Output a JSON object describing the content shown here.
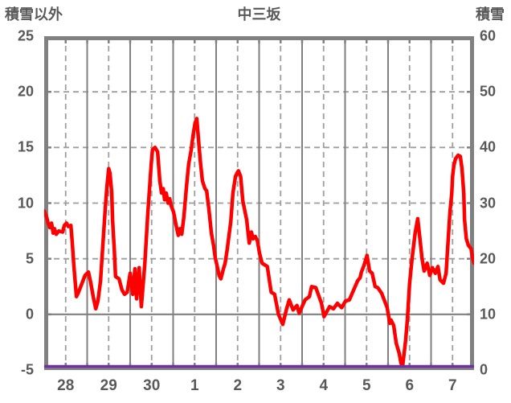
{
  "header": {
    "left_axis_label": "積雪以外",
    "title": "中三坂",
    "right_axis_label": "積雪"
  },
  "colors": {
    "temperature_line": "#ff0000",
    "snow_line": "#7030a0",
    "frame": "#808080",
    "grid_major": "#808080",
    "grid_minor": "#9e9e9e",
    "text": "#595959"
  },
  "chart_data": {
    "type": "line",
    "title": "中三坂",
    "left_axis": {
      "label": "積雪以外",
      "ticks": [
        25,
        20,
        15,
        10,
        5,
        0,
        -5
      ],
      "range": [
        -5,
        25
      ]
    },
    "right_axis": {
      "label": "積雪",
      "ticks": [
        60,
        50,
        40,
        30,
        20,
        10,
        0
      ],
      "range": [
        0,
        60
      ]
    },
    "x_axis": {
      "tick_labels": [
        "28",
        "29",
        "30",
        "1",
        "2",
        "3",
        "4",
        "5",
        "6",
        "7"
      ],
      "range_days": [
        0,
        10
      ]
    },
    "grid": {
      "h_dashed_values": [
        20,
        15,
        10,
        5
      ],
      "h_solid_values": [
        0
      ],
      "v_solid_step_days": 1,
      "v_dashed_step_days": 0.5
    },
    "legend": "none",
    "series": [
      {
        "name": "積雪以外",
        "axis": "left",
        "color": "#ff0000",
        "x": [
          0.0,
          0.06,
          0.09,
          0.13,
          0.17,
          0.21,
          0.24,
          0.28,
          0.34,
          0.43,
          0.47,
          0.52,
          0.56,
          0.62,
          0.65,
          0.69,
          0.75,
          0.8,
          0.88,
          0.95,
          1.03,
          1.08,
          1.14,
          1.2,
          1.25,
          1.31,
          1.36,
          1.42,
          1.46,
          1.5,
          1.53,
          1.57,
          1.59,
          1.63,
          1.66,
          1.74,
          1.81,
          1.87,
          1.93,
          2.0,
          2.06,
          2.11,
          2.15,
          2.21,
          2.26,
          2.34,
          2.41,
          2.49,
          2.52,
          2.58,
          2.64,
          2.69,
          2.73,
          2.77,
          2.8,
          2.84,
          2.88,
          2.92,
          2.95,
          3.01,
          3.07,
          3.12,
          3.16,
          3.2,
          3.25,
          3.31,
          3.36,
          3.42,
          3.46,
          3.51,
          3.55,
          3.61,
          3.64,
          3.68,
          3.74,
          3.78,
          3.83,
          3.89,
          3.94,
          3.98,
          4.02,
          4.07,
          4.11,
          4.17,
          4.21,
          4.26,
          4.3,
          4.34,
          4.39,
          4.45,
          4.5,
          4.52,
          4.57,
          4.62,
          4.71,
          4.77,
          4.82,
          4.86,
          4.91,
          4.96,
          5.01,
          5.07,
          5.19,
          5.28,
          5.36,
          5.45,
          5.55,
          5.64,
          5.7,
          5.79,
          5.88,
          5.93,
          6.07,
          6.17,
          6.22,
          6.32,
          6.45,
          6.51,
          6.64,
          6.73,
          6.82,
          6.92,
          7.01,
          7.1,
          7.2,
          7.29,
          7.35,
          7.38,
          7.44,
          7.51,
          7.57,
          7.63,
          7.7,
          7.76,
          7.85,
          7.98,
          8.04,
          8.07,
          8.13,
          8.19,
          8.26,
          8.3,
          8.34,
          8.41,
          8.45,
          8.5,
          8.56,
          8.63,
          8.69,
          8.75,
          8.79,
          8.84,
          8.91,
          8.97,
          9.03,
          9.1,
          9.16,
          9.21,
          9.29,
          9.35,
          9.4,
          9.44,
          9.48,
          9.5,
          9.53,
          9.57,
          9.63,
          9.68,
          9.72,
          9.76,
          9.78,
          9.82,
          9.87,
          9.93,
          9.97,
          10.0
        ],
        "y": [
          9.3,
          8.7,
          8.2,
          7.8,
          8.2,
          7.3,
          7.7,
          7.2,
          7.5,
          7.4,
          8.0,
          8.2,
          7.9,
          8.0,
          6.6,
          4.4,
          1.6,
          2.0,
          2.8,
          3.5,
          3.8,
          2.9,
          1.6,
          0.5,
          1.2,
          3.0,
          6.0,
          9.5,
          11.5,
          13.1,
          12.7,
          11.0,
          8.5,
          5.9,
          3.4,
          3.2,
          2.2,
          1.8,
          2.0,
          3.7,
          1.8,
          4.1,
          1.4,
          4.2,
          0.7,
          4.5,
          9.0,
          13.5,
          14.8,
          15.0,
          14.6,
          12.0,
          10.9,
          11.3,
          10.3,
          10.9,
          10.0,
          10.4,
          9.8,
          9.2,
          8.0,
          7.1,
          7.7,
          7.2,
          8.8,
          11.5,
          13.5,
          14.8,
          16.0,
          17.2,
          17.6,
          14.8,
          13.5,
          12.0,
          11.3,
          11.1,
          9.5,
          7.3,
          6.2,
          5.1,
          4.4,
          3.5,
          3.2,
          4.1,
          4.6,
          5.9,
          7.1,
          8.3,
          10.9,
          12.4,
          12.8,
          12.9,
          12.4,
          10.2,
          8.5,
          6.4,
          7.4,
          6.8,
          7.0,
          6.6,
          5.5,
          4.6,
          4.3,
          2.0,
          1.8,
          0.0,
          -0.9,
          0.5,
          1.3,
          0.4,
          0.8,
          0.1,
          1.3,
          1.6,
          2.5,
          2.4,
          1.0,
          -0.2,
          0.7,
          0.5,
          1.0,
          0.6,
          1.2,
          1.3,
          2.2,
          3.0,
          3.3,
          3.8,
          4.4,
          5.3,
          3.9,
          3.7,
          2.5,
          2.4,
          1.9,
          0.6,
          -0.8,
          -0.5,
          -1.0,
          -2.6,
          -3.5,
          -4.4,
          -4.6,
          -2.3,
          -0.4,
          2.8,
          5.1,
          7.3,
          8.6,
          6.5,
          5.0,
          3.9,
          4.6,
          3.5,
          4.2,
          3.7,
          4.3,
          3.1,
          2.8,
          3.7,
          6.8,
          9.2,
          10.8,
          12.4,
          13.4,
          14.0,
          14.3,
          14.2,
          13.1,
          10.9,
          8.5,
          6.8,
          6.2,
          5.9,
          5.0,
          4.6
        ]
      },
      {
        "name": "積雪",
        "axis": "right",
        "color": "#7030a0",
        "x": [
          0,
          10
        ],
        "y": [
          0,
          0
        ]
      }
    ]
  }
}
